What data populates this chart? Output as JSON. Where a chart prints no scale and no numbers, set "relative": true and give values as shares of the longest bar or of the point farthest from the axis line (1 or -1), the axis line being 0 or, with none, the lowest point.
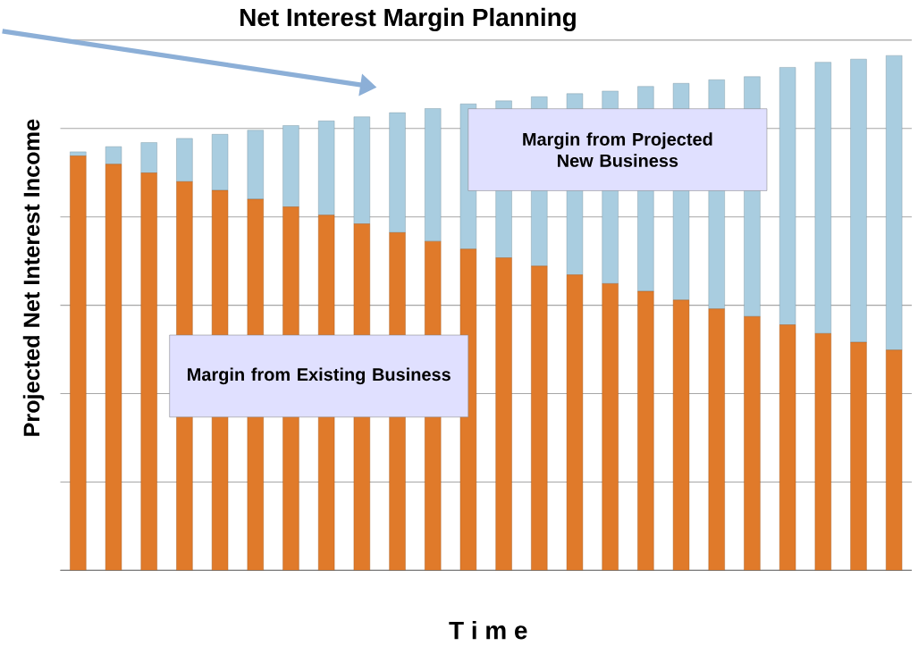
{
  "chart_data": {
    "type": "bar",
    "title": "Net Interest Margin Planning",
    "xlabel": "T i m e",
    "ylabel": "Projected Net Interest Income",
    "relative": true,
    "stacked": true,
    "grid": "y",
    "tick_labels": false,
    "categories": [
      null,
      null,
      null,
      null,
      null,
      null,
      null,
      null,
      null,
      null,
      null,
      null,
      null,
      null,
      null,
      null,
      null,
      null,
      null,
      null,
      null,
      null,
      null,
      null
    ],
    "series": [
      {
        "name": "Margin from Existing Business",
        "color": "#e07a2a",
        "values": [
          0.805,
          0.789,
          0.772,
          0.755,
          0.738,
          0.721,
          0.706,
          0.69,
          0.673,
          0.656,
          0.639,
          0.624,
          0.607,
          0.591,
          0.574,
          0.557,
          0.542,
          0.525,
          0.508,
          0.493,
          0.477,
          0.46,
          0.443,
          0.428
        ]
      },
      {
        "name": "Margin from Projected New Business",
        "color": "#a9cde0",
        "values": [
          0.008,
          0.034,
          0.059,
          0.084,
          0.109,
          0.134,
          0.158,
          0.183,
          0.208,
          0.233,
          0.258,
          0.282,
          0.305,
          0.329,
          0.352,
          0.374,
          0.398,
          0.421,
          0.445,
          0.466,
          0.5,
          0.527,
          0.55,
          0.572
        ]
      }
    ]
  }
}
